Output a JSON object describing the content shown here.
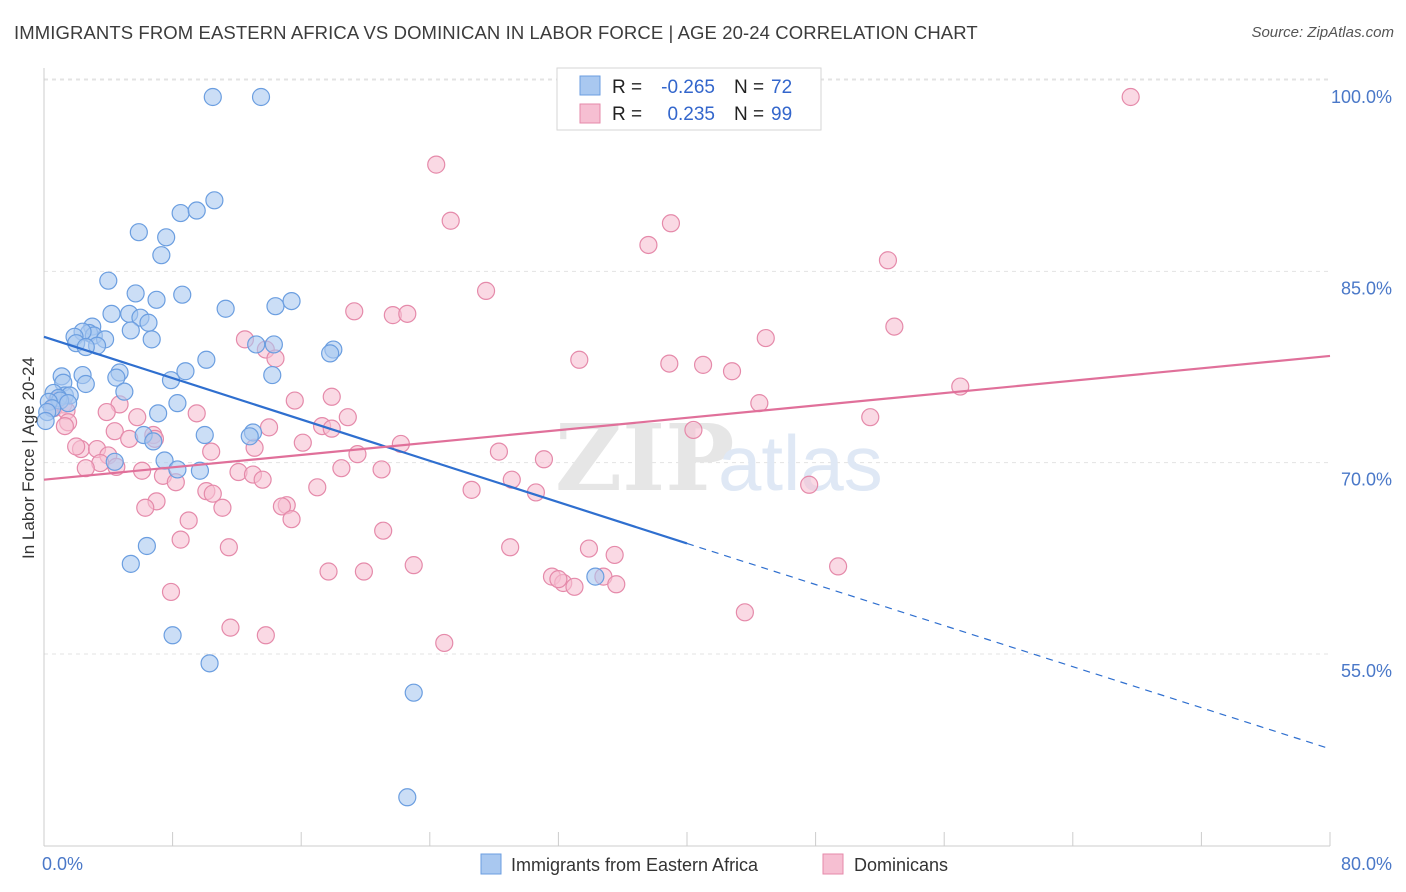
{
  "title": "IMMIGRANTS FROM EASTERN AFRICA VS DOMINICAN IN LABOR FORCE | AGE 20-24 CORRELATION CHART",
  "source": "Source: ZipAtlas.com",
  "watermark": {
    "bold": "ZIP",
    "light": "atlas"
  },
  "stats_box": {
    "row1": {
      "r_label": "R =",
      "r_value": "-0.265",
      "n_label": "N =",
      "n_value": "72"
    },
    "row2": {
      "r_label": "R =",
      "r_value": "0.235",
      "n_label": "N =",
      "n_value": "99"
    }
  },
  "colors": {
    "blue_fill": "#a9c8f0",
    "blue_stroke": "#6b9ee0",
    "blue_line": "#2f6fcf",
    "pink_fill": "#f6bfd2",
    "pink_stroke": "#e58aaa",
    "pink_line": "#e0709a",
    "grid": "#e3e3e3",
    "tick_label": "#4a78c8"
  },
  "chart_data": {
    "type": "scatter",
    "title": "IMMIGRANTS FROM EASTERN AFRICA VS DOMINICAN IN LABOR FORCE | AGE 20-24 CORRELATION CHART",
    "xlabel": "",
    "ylabel": "In Labor Force | Age 20-24",
    "xlim": [
      0,
      80
    ],
    "ylim": [
      40,
      102
    ],
    "x_tick_labels": [
      "0.0%",
      "80.0%"
    ],
    "y_ticks": [
      55,
      70,
      85,
      100
    ],
    "y_tick_labels": [
      "55.0%",
      "70.0%",
      "85.0%",
      "100.0%"
    ],
    "grid": true,
    "legend_position": "bottom-center",
    "series": [
      {
        "name": "Immigrants from Eastern Africa",
        "color": "#a9c8f0",
        "trend": {
          "x": [
            0,
            40
          ],
          "y": [
            81.2,
            65.0
          ],
          "dashed_to": [
            80,
            48.9
          ]
        },
        "points": [
          [
            10.5,
            100.0
          ],
          [
            13.5,
            100.0
          ],
          [
            10.6,
            91.9
          ],
          [
            8.5,
            90.9
          ],
          [
            9.5,
            91.1
          ],
          [
            5.9,
            89.4
          ],
          [
            7.6,
            89.0
          ],
          [
            7.3,
            87.6
          ],
          [
            4.0,
            85.6
          ],
          [
            5.7,
            84.6
          ],
          [
            8.6,
            84.5
          ],
          [
            7.0,
            84.1
          ],
          [
            14.4,
            83.6
          ],
          [
            11.3,
            83.4
          ],
          [
            15.4,
            84.0
          ],
          [
            5.3,
            83.0
          ],
          [
            6.0,
            82.7
          ],
          [
            4.2,
            83.0
          ],
          [
            6.5,
            82.3
          ],
          [
            3.0,
            82.0
          ],
          [
            2.8,
            81.5
          ],
          [
            3.1,
            81.3
          ],
          [
            2.4,
            81.6
          ],
          [
            1.9,
            81.2
          ],
          [
            3.8,
            81.0
          ],
          [
            5.4,
            81.7
          ],
          [
            6.7,
            81.0
          ],
          [
            2.0,
            80.7
          ],
          [
            3.3,
            80.5
          ],
          [
            2.6,
            80.4
          ],
          [
            13.2,
            80.6
          ],
          [
            14.3,
            80.6
          ],
          [
            18.0,
            80.2
          ],
          [
            17.8,
            79.9
          ],
          [
            10.1,
            79.4
          ],
          [
            8.8,
            78.5
          ],
          [
            4.7,
            78.4
          ],
          [
            14.2,
            78.2
          ],
          [
            1.1,
            78.1
          ],
          [
            2.4,
            78.2
          ],
          [
            4.5,
            78.0
          ],
          [
            7.9,
            77.8
          ],
          [
            2.6,
            77.5
          ],
          [
            1.2,
            77.6
          ],
          [
            5.0,
            76.9
          ],
          [
            1.3,
            76.6
          ],
          [
            0.6,
            76.8
          ],
          [
            1.6,
            76.6
          ],
          [
            0.9,
            76.4
          ],
          [
            1.0,
            76.2
          ],
          [
            0.3,
            76.1
          ],
          [
            1.5,
            76.0
          ],
          [
            0.5,
            75.6
          ],
          [
            8.3,
            76.0
          ],
          [
            7.1,
            75.2
          ],
          [
            0.2,
            75.3
          ],
          [
            0.1,
            74.6
          ],
          [
            6.2,
            73.5
          ],
          [
            10.0,
            73.5
          ],
          [
            13.0,
            73.7
          ],
          [
            6.8,
            73.0
          ],
          [
            12.8,
            73.4
          ],
          [
            7.5,
            71.5
          ],
          [
            4.4,
            71.4
          ],
          [
            8.3,
            70.8
          ],
          [
            9.7,
            70.7
          ],
          [
            6.4,
            64.8
          ],
          [
            5.4,
            63.4
          ],
          [
            34.3,
            62.4
          ],
          [
            8.0,
            57.8
          ],
          [
            10.3,
            55.6
          ],
          [
            23.0,
            53.3
          ],
          [
            22.6,
            45.1
          ]
        ]
      },
      {
        "name": "Dominicans",
        "color": "#f6bfd2",
        "trend": {
          "x": [
            0,
            80
          ],
          "y": [
            70.0,
            79.7
          ]
        },
        "points": [
          [
            67.6,
            100.0
          ],
          [
            24.4,
            94.7
          ],
          [
            25.3,
            90.3
          ],
          [
            39.0,
            90.1
          ],
          [
            37.6,
            88.4
          ],
          [
            52.5,
            87.2
          ],
          [
            27.5,
            84.8
          ],
          [
            19.3,
            83.2
          ],
          [
            21.7,
            82.9
          ],
          [
            22.6,
            83.0
          ],
          [
            52.9,
            82.0
          ],
          [
            12.5,
            81.0
          ],
          [
            44.9,
            81.1
          ],
          [
            13.8,
            80.2
          ],
          [
            14.4,
            79.5
          ],
          [
            33.3,
            79.4
          ],
          [
            41.0,
            79.0
          ],
          [
            38.9,
            79.1
          ],
          [
            42.8,
            78.5
          ],
          [
            57.0,
            77.3
          ],
          [
            15.6,
            76.2
          ],
          [
            17.9,
            76.5
          ],
          [
            44.5,
            76.0
          ],
          [
            4.7,
            75.9
          ],
          [
            1.2,
            75.9
          ],
          [
            0.8,
            76.2
          ],
          [
            0.6,
            75.6
          ],
          [
            1.4,
            75.4
          ],
          [
            3.9,
            75.3
          ],
          [
            5.8,
            74.9
          ],
          [
            9.5,
            75.2
          ],
          [
            18.9,
            74.9
          ],
          [
            51.4,
            74.9
          ],
          [
            1.5,
            74.5
          ],
          [
            1.3,
            74.2
          ],
          [
            17.3,
            74.2
          ],
          [
            17.9,
            74.0
          ],
          [
            4.4,
            73.8
          ],
          [
            6.8,
            73.5
          ],
          [
            14.0,
            74.1
          ],
          [
            40.4,
            73.9
          ],
          [
            5.3,
            73.2
          ],
          [
            6.9,
            73.2
          ],
          [
            16.1,
            72.9
          ],
          [
            22.2,
            72.8
          ],
          [
            13.1,
            72.5
          ],
          [
            2.3,
            72.4
          ],
          [
            3.3,
            72.4
          ],
          [
            4.0,
            71.9
          ],
          [
            2.0,
            72.6
          ],
          [
            10.4,
            72.2
          ],
          [
            28.3,
            72.2
          ],
          [
            19.5,
            72.0
          ],
          [
            31.1,
            71.6
          ],
          [
            3.5,
            71.3
          ],
          [
            4.5,
            71.0
          ],
          [
            2.6,
            70.9
          ],
          [
            18.5,
            70.9
          ],
          [
            21.0,
            70.8
          ],
          [
            12.1,
            70.6
          ],
          [
            6.1,
            70.7
          ],
          [
            7.4,
            70.3
          ],
          [
            13.0,
            70.4
          ],
          [
            13.6,
            70.0
          ],
          [
            8.2,
            69.8
          ],
          [
            29.1,
            70.0
          ],
          [
            17.0,
            69.4
          ],
          [
            26.6,
            69.2
          ],
          [
            30.6,
            69.0
          ],
          [
            10.1,
            69.1
          ],
          [
            10.5,
            68.9
          ],
          [
            47.6,
            69.6
          ],
          [
            7.0,
            68.3
          ],
          [
            15.1,
            68.0
          ],
          [
            14.8,
            67.9
          ],
          [
            6.3,
            67.8
          ],
          [
            11.1,
            67.8
          ],
          [
            15.4,
            66.9
          ],
          [
            9.0,
            66.8
          ],
          [
            21.1,
            66.0
          ],
          [
            8.5,
            65.3
          ],
          [
            11.5,
            64.7
          ],
          [
            29.0,
            64.7
          ],
          [
            33.9,
            64.6
          ],
          [
            35.5,
            64.1
          ],
          [
            23.0,
            63.3
          ],
          [
            49.4,
            63.2
          ],
          [
            17.7,
            62.8
          ],
          [
            19.9,
            62.8
          ],
          [
            31.6,
            62.4
          ],
          [
            32.3,
            61.9
          ],
          [
            32.0,
            62.2
          ],
          [
            34.8,
            62.4
          ],
          [
            33.0,
            61.6
          ],
          [
            35.6,
            61.8
          ],
          [
            7.9,
            61.2
          ],
          [
            43.6,
            59.6
          ],
          [
            11.6,
            58.4
          ],
          [
            13.8,
            57.8
          ],
          [
            24.9,
            57.2
          ]
        ]
      }
    ]
  },
  "legend": {
    "items": [
      {
        "label": "Immigrants from Eastern Africa"
      },
      {
        "label": "Dominicans"
      }
    ]
  }
}
